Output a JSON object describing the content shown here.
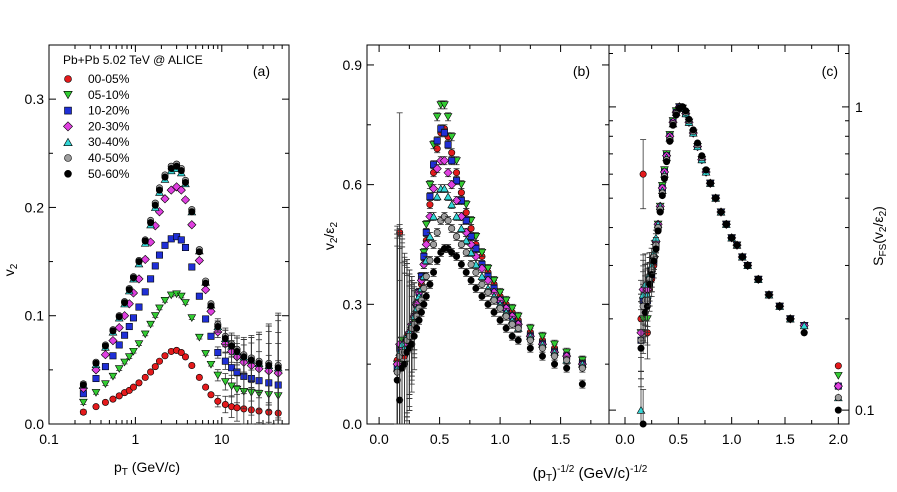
{
  "legend": {
    "title": "Pb+Pb 5.02 TeV @ ALICE",
    "entries": [
      {
        "label": "00-05%",
        "color": "#e41a1c",
        "marker": "circle"
      },
      {
        "label": "05-10%",
        "color": "#33cc33",
        "marker": "triangle-down"
      },
      {
        "label": "10-20%",
        "color": "#1f2fd6",
        "marker": "square"
      },
      {
        "label": "20-30%",
        "color": "#e040e0",
        "marker": "diamond"
      },
      {
        "label": "30-40%",
        "color": "#33d6d6",
        "marker": "triangle-up"
      },
      {
        "label": "40-50%",
        "color": "#9e9e9e",
        "marker": "circle"
      },
      {
        "label": "50-60%",
        "color": "#000000",
        "marker": "circle"
      }
    ]
  },
  "shared_xlabel": "(p_T)^{-1/2} (GeV/c)^{-1/2}",
  "chart_data": [
    {
      "id": "a",
      "type": "scatter",
      "panel_label": "(a)",
      "xscale": "log",
      "xlabel": "p_T (GeV/c)",
      "ylabel": "v_2",
      "xlim": [
        0.1,
        60
      ],
      "ylim": [
        0.0,
        0.35
      ],
      "xticks": [
        0.1,
        1,
        10
      ],
      "xticklabels": [
        "0.1",
        "1",
        "10"
      ],
      "yticks": [
        0.0,
        0.1,
        0.2,
        0.3
      ],
      "yticklabels": [
        "0.0",
        "0.1",
        "0.2",
        "0.3"
      ],
      "x": [
        0.25,
        0.35,
        0.45,
        0.55,
        0.65,
        0.75,
        0.85,
        0.95,
        1.1,
        1.3,
        1.5,
        1.7,
        1.9,
        2.2,
        2.6,
        3.0,
        3.4,
        3.8,
        4.5,
        5.5,
        6.5,
        7.5,
        9.0,
        11.0,
        13.0,
        15.0,
        18.0,
        22.0,
        27.0,
        35.0,
        45.0
      ],
      "series": [
        {
          "name": "00-05%",
          "values": [
            0.011,
            0.016,
            0.02,
            0.023,
            0.026,
            0.029,
            0.031,
            0.034,
            0.038,
            0.043,
            0.048,
            0.053,
            0.058,
            0.063,
            0.067,
            0.068,
            0.066,
            0.062,
            0.054,
            0.043,
            0.034,
            0.027,
            0.021,
            0.018,
            0.016,
            0.015,
            0.014,
            0.013,
            0.012,
            0.011,
            0.01
          ]
        },
        {
          "name": "05-10%",
          "values": [
            0.02,
            0.029,
            0.037,
            0.044,
            0.051,
            0.057,
            0.062,
            0.067,
            0.074,
            0.083,
            0.092,
            0.1,
            0.107,
            0.114,
            0.119,
            0.12,
            0.118,
            0.112,
            0.098,
            0.08,
            0.065,
            0.055,
            0.045,
            0.039,
            0.035,
            0.032,
            0.03,
            0.029,
            0.028,
            0.027,
            0.026
          ]
        },
        {
          "name": "10-20%",
          "values": [
            0.028,
            0.042,
            0.053,
            0.063,
            0.073,
            0.082,
            0.09,
            0.098,
            0.108,
            0.122,
            0.134,
            0.146,
            0.156,
            0.165,
            0.171,
            0.173,
            0.17,
            0.163,
            0.145,
            0.118,
            0.097,
            0.081,
            0.066,
            0.058,
            0.052,
            0.048,
            0.044,
            0.042,
            0.04,
            0.038,
            0.036
          ]
        },
        {
          "name": "20-30%",
          "values": [
            0.033,
            0.05,
            0.064,
            0.077,
            0.089,
            0.1,
            0.111,
            0.121,
            0.134,
            0.152,
            0.168,
            0.183,
            0.196,
            0.208,
            0.216,
            0.219,
            0.216,
            0.207,
            0.184,
            0.151,
            0.124,
            0.104,
            0.085,
            0.074,
            0.067,
            0.062,
            0.057,
            0.054,
            0.051,
            0.049,
            0.047
          ]
        },
        {
          "name": "30-40%",
          "values": [
            0.036,
            0.055,
            0.071,
            0.085,
            0.098,
            0.111,
            0.123,
            0.134,
            0.148,
            0.167,
            0.184,
            0.2,
            0.214,
            0.226,
            0.234,
            0.236,
            0.232,
            0.222,
            0.196,
            0.16,
            0.131,
            0.11,
            0.09,
            0.079,
            0.072,
            0.067,
            0.062,
            0.059,
            0.056,
            0.054,
            0.052
          ]
        },
        {
          "name": "40-50%",
          "values": [
            0.037,
            0.057,
            0.073,
            0.087,
            0.1,
            0.113,
            0.125,
            0.136,
            0.151,
            0.17,
            0.188,
            0.204,
            0.218,
            0.23,
            0.238,
            0.24,
            0.236,
            0.225,
            0.198,
            0.161,
            0.132,
            0.111,
            0.092,
            0.081,
            0.074,
            0.069,
            0.064,
            0.061,
            0.058,
            0.056,
            0.054
          ]
        },
        {
          "name": "50-60%",
          "values": [
            0.036,
            0.056,
            0.072,
            0.086,
            0.099,
            0.112,
            0.124,
            0.135,
            0.15,
            0.169,
            0.186,
            0.202,
            0.216,
            0.228,
            0.236,
            0.238,
            0.234,
            0.223,
            0.196,
            0.159,
            0.13,
            0.109,
            0.09,
            0.079,
            0.072,
            0.067,
            0.062,
            0.059,
            0.056,
            0.054,
            0.052
          ]
        }
      ]
    },
    {
      "id": "b",
      "type": "scatter",
      "panel_label": "(b)",
      "xscale": "linear",
      "ylabel": "v_2/ε_2",
      "xlim": [
        -0.1,
        1.9
      ],
      "ylim": [
        0.0,
        0.95
      ],
      "xticks": [
        0.0,
        0.5,
        1.0,
        1.5
      ],
      "xticklabels": [
        "0.0",
        "0.5",
        "1.0",
        "1.5"
      ],
      "yticks": [
        0.0,
        0.3,
        0.6,
        0.9
      ],
      "yticklabels": [
        "0.0",
        "0.3",
        "0.6",
        "0.9"
      ],
      "x": [
        0.15,
        0.17,
        0.19,
        0.21,
        0.23,
        0.25,
        0.27,
        0.29,
        0.31,
        0.33,
        0.35,
        0.37,
        0.39,
        0.42,
        0.45,
        0.48,
        0.51,
        0.54,
        0.57,
        0.6,
        0.64,
        0.68,
        0.72,
        0.76,
        0.8,
        0.85,
        0.9,
        0.95,
        1.0,
        1.05,
        1.1,
        1.15,
        1.25,
        1.35,
        1.45,
        1.55,
        1.68
      ],
      "series": [
        {
          "name": "00-05%",
          "values": [
            0.16,
            0.48,
            0.2,
            0.17,
            0.22,
            0.2,
            0.22,
            0.25,
            0.28,
            0.31,
            0.35,
            0.4,
            0.46,
            0.55,
            0.63,
            0.69,
            0.73,
            0.74,
            0.72,
            0.68,
            0.63,
            0.58,
            0.53,
            0.49,
            0.45,
            0.42,
            0.38,
            0.35,
            0.32,
            0.3,
            0.28,
            0.26,
            0.23,
            0.21,
            0.19,
            0.17,
            0.16
          ]
        },
        {
          "name": "05-10%",
          "values": [
            0.15,
            0.14,
            0.21,
            0.15,
            0.2,
            0.19,
            0.23,
            0.26,
            0.29,
            0.33,
            0.37,
            0.43,
            0.5,
            0.6,
            0.7,
            0.77,
            0.8,
            0.8,
            0.77,
            0.72,
            0.66,
            0.6,
            0.55,
            0.51,
            0.47,
            0.43,
            0.39,
            0.36,
            0.33,
            0.31,
            0.29,
            0.27,
            0.24,
            0.22,
            0.2,
            0.18,
            0.16
          ]
        },
        {
          "name": "10-20%",
          "values": [
            0.14,
            0.19,
            0.18,
            0.18,
            0.21,
            0.22,
            0.24,
            0.27,
            0.3,
            0.33,
            0.37,
            0.42,
            0.48,
            0.57,
            0.65,
            0.71,
            0.74,
            0.73,
            0.7,
            0.66,
            0.61,
            0.56,
            0.51,
            0.47,
            0.44,
            0.4,
            0.37,
            0.34,
            0.31,
            0.29,
            0.27,
            0.25,
            0.22,
            0.2,
            0.18,
            0.17,
            0.15
          ]
        },
        {
          "name": "20-30%",
          "values": [
            0.15,
            0.2,
            0.19,
            0.2,
            0.21,
            0.23,
            0.25,
            0.27,
            0.3,
            0.33,
            0.36,
            0.4,
            0.45,
            0.52,
            0.59,
            0.64,
            0.66,
            0.66,
            0.63,
            0.6,
            0.56,
            0.52,
            0.48,
            0.45,
            0.42,
            0.39,
            0.36,
            0.33,
            0.31,
            0.29,
            0.27,
            0.25,
            0.22,
            0.2,
            0.18,
            0.17,
            0.15
          ]
        },
        {
          "name": "30-40%",
          "values": [
            0.14,
            0.18,
            0.2,
            0.19,
            0.22,
            0.23,
            0.25,
            0.27,
            0.29,
            0.32,
            0.34,
            0.37,
            0.41,
            0.47,
            0.52,
            0.57,
            0.59,
            0.59,
            0.57,
            0.55,
            0.52,
            0.49,
            0.46,
            0.43,
            0.4,
            0.37,
            0.34,
            0.32,
            0.3,
            0.28,
            0.26,
            0.24,
            0.22,
            0.2,
            0.18,
            0.16,
            0.15
          ]
        },
        {
          "name": "40-50%",
          "values": [
            0.13,
            0.17,
            0.18,
            0.18,
            0.21,
            0.22,
            0.24,
            0.25,
            0.27,
            0.29,
            0.31,
            0.34,
            0.37,
            0.41,
            0.45,
            0.48,
            0.51,
            0.52,
            0.51,
            0.49,
            0.47,
            0.45,
            0.43,
            0.4,
            0.38,
            0.35,
            0.33,
            0.31,
            0.29,
            0.27,
            0.25,
            0.24,
            0.21,
            0.19,
            0.17,
            0.16,
            0.14
          ]
        },
        {
          "name": "50-60%",
          "values": [
            0.11,
            0.06,
            0.14,
            0.15,
            0.18,
            0.19,
            0.2,
            0.22,
            0.24,
            0.26,
            0.28,
            0.3,
            0.32,
            0.35,
            0.38,
            0.41,
            0.43,
            0.44,
            0.44,
            0.43,
            0.42,
            0.4,
            0.38,
            0.36,
            0.34,
            0.32,
            0.3,
            0.28,
            0.26,
            0.24,
            0.22,
            0.21,
            0.19,
            0.17,
            0.15,
            0.14,
            0.1
          ]
        }
      ]
    },
    {
      "id": "c",
      "type": "scatter",
      "panel_label": "(c)",
      "xscale": "linear",
      "yscale": "log",
      "ylabel": "S_FS(v_2/ε_2)",
      "yaxis_side": "right",
      "xlim": [
        -0.15,
        2.1
      ],
      "ylim": [
        0.09,
        1.6
      ],
      "xticks": [
        0.0,
        0.5,
        1.0,
        1.5,
        2.0
      ],
      "xticklabels": [
        "0.0",
        "0.5",
        "1.0",
        "1.5",
        "2.0"
      ],
      "yticks": [
        0.1,
        1
      ],
      "yticklabels": [
        "0.1",
        "1"
      ],
      "x": [
        0.15,
        0.17,
        0.19,
        0.21,
        0.23,
        0.25,
        0.27,
        0.29,
        0.31,
        0.33,
        0.35,
        0.37,
        0.39,
        0.42,
        0.45,
        0.48,
        0.51,
        0.54,
        0.57,
        0.6,
        0.64,
        0.68,
        0.72,
        0.76,
        0.8,
        0.85,
        0.9,
        0.95,
        1.0,
        1.05,
        1.1,
        1.15,
        1.25,
        1.35,
        1.45,
        1.55,
        1.68,
        2.0
      ],
      "series": [
        {
          "name": "00-05%",
          "values": [
            0.2,
            0.6,
            0.22,
            0.18,
            0.25,
            0.27,
            0.3,
            0.34,
            0.39,
            0.46,
            0.53,
            0.61,
            0.69,
            0.8,
            0.89,
            0.96,
            1.0,
            0.99,
            0.95,
            0.89,
            0.82,
            0.74,
            0.67,
            0.61,
            0.56,
            0.5,
            0.45,
            0.41,
            0.37,
            0.35,
            0.32,
            0.3,
            0.27,
            0.24,
            0.22,
            0.2,
            0.19,
            0.14
          ]
        },
        {
          "name": "05-10%",
          "values": [
            0.18,
            0.2,
            0.24,
            0.2,
            0.26,
            0.28,
            0.31,
            0.35,
            0.41,
            0.47,
            0.55,
            0.62,
            0.7,
            0.81,
            0.9,
            0.97,
            1.0,
            0.99,
            0.95,
            0.89,
            0.82,
            0.74,
            0.67,
            0.61,
            0.56,
            0.5,
            0.45,
            0.41,
            0.37,
            0.35,
            0.32,
            0.3,
            0.27,
            0.24,
            0.22,
            0.2,
            0.19,
            0.13
          ]
        },
        {
          "name": "10-20%",
          "values": [
            0.17,
            0.23,
            0.22,
            0.23,
            0.26,
            0.28,
            0.31,
            0.35,
            0.4,
            0.46,
            0.54,
            0.61,
            0.69,
            0.8,
            0.89,
            0.96,
            1.0,
            0.99,
            0.95,
            0.89,
            0.82,
            0.74,
            0.67,
            0.61,
            0.56,
            0.5,
            0.45,
            0.41,
            0.37,
            0.35,
            0.32,
            0.3,
            0.27,
            0.24,
            0.22,
            0.2,
            0.19,
            0.12
          ]
        },
        {
          "name": "20-30%",
          "values": [
            0.18,
            0.25,
            0.24,
            0.25,
            0.27,
            0.29,
            0.32,
            0.36,
            0.41,
            0.47,
            0.54,
            0.61,
            0.69,
            0.8,
            0.89,
            0.96,
            1.0,
            0.99,
            0.95,
            0.89,
            0.82,
            0.74,
            0.67,
            0.61,
            0.56,
            0.5,
            0.45,
            0.41,
            0.37,
            0.35,
            0.32,
            0.3,
            0.27,
            0.24,
            0.22,
            0.2,
            0.19,
            0.12
          ]
        },
        {
          "name": "30-40%",
          "values": [
            0.1,
            0.24,
            0.26,
            0.24,
            0.28,
            0.3,
            0.33,
            0.37,
            0.41,
            0.47,
            0.53,
            0.6,
            0.68,
            0.79,
            0.88,
            0.96,
            1.0,
            0.99,
            0.95,
            0.89,
            0.82,
            0.74,
            0.67,
            0.61,
            0.56,
            0.5,
            0.45,
            0.41,
            0.37,
            0.35,
            0.32,
            0.3,
            0.27,
            0.24,
            0.22,
            0.2,
            0.19,
            0.11
          ]
        },
        {
          "name": "40-50%",
          "values": [
            0.17,
            0.22,
            0.23,
            0.23,
            0.27,
            0.29,
            0.32,
            0.35,
            0.4,
            0.46,
            0.52,
            0.59,
            0.67,
            0.78,
            0.88,
            0.95,
            0.99,
            1.0,
            0.96,
            0.9,
            0.83,
            0.75,
            0.68,
            0.62,
            0.56,
            0.5,
            0.45,
            0.41,
            0.37,
            0.35,
            0.32,
            0.3,
            0.27,
            0.24,
            0.22,
            0.2,
            0.18,
            0.11
          ]
        },
        {
          "name": "50-60%",
          "values": [
            0.16,
            0.09,
            0.21,
            0.22,
            0.26,
            0.28,
            0.31,
            0.34,
            0.39,
            0.45,
            0.51,
            0.58,
            0.66,
            0.77,
            0.87,
            0.94,
            0.99,
            1.0,
            0.97,
            0.91,
            0.84,
            0.76,
            0.69,
            0.62,
            0.56,
            0.5,
            0.45,
            0.41,
            0.37,
            0.35,
            0.32,
            0.3,
            0.27,
            0.24,
            0.22,
            0.2,
            0.18,
            0.1
          ]
        }
      ]
    }
  ]
}
